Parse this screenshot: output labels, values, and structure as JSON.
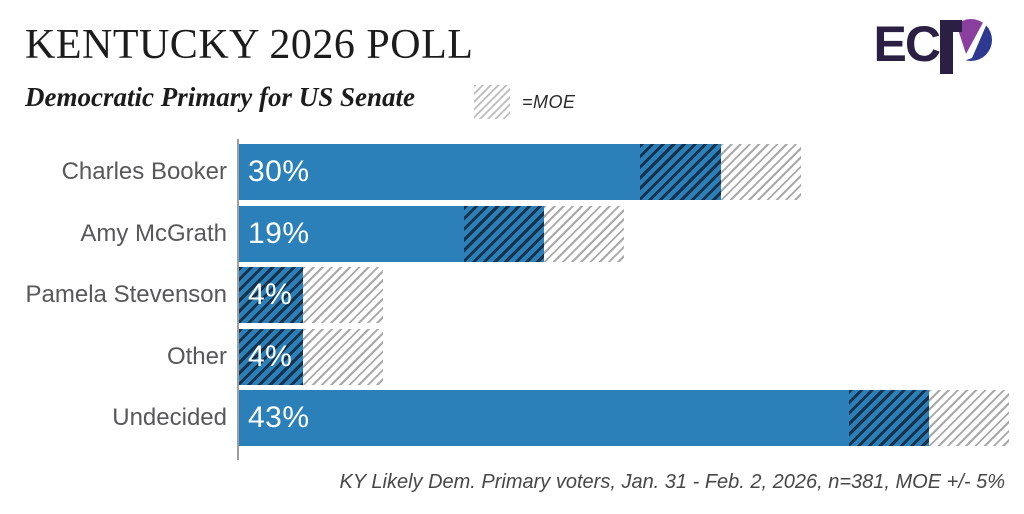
{
  "header": {
    "title": "KENTUCKY 2026 POLL",
    "subtitle": "Democratic Primary for US Senate",
    "legend_label": "=MOE"
  },
  "logo": {
    "text_ec": "EC",
    "letter_p": "P"
  },
  "chart_data": {
    "type": "bar",
    "orientation": "horizontal",
    "title": "KENTUCKY 2026 POLL",
    "subtitle": "Democratic Primary for US Senate",
    "categories": [
      "Charles Booker",
      "Amy McGrath",
      "Pamela Stevenson",
      "Other",
      "Undecided"
    ],
    "values": [
      30,
      19,
      4,
      4,
      43
    ],
    "value_labels": [
      "30%",
      "19%",
      "4%",
      "4%",
      "43%"
    ],
    "moe_percent": 5,
    "xlim": [
      0,
      48
    ],
    "legend_label": "=MOE",
    "grid": false,
    "legend_position": "top",
    "bar_color": "#2b80b9",
    "moe_inner_hatch_color": "#16314a",
    "moe_outer_hatch_color": "#a8a8a8"
  },
  "footer": {
    "note": "KY Likely Dem. Primary voters, Jan. 31 - Feb. 2, 2026, n=381, MOE +/- 5%"
  },
  "colors": {
    "bar_blue": "#2b80b9",
    "moe_dark_line": "#16314a",
    "moe_light_line": "#a8a8a8",
    "label_gray": "#58585a",
    "title_black": "#1c1c1c",
    "logo_dark": "#2b2044",
    "logo_purple": "#8a3f9e",
    "logo_indigo": "#2d3a8f"
  }
}
